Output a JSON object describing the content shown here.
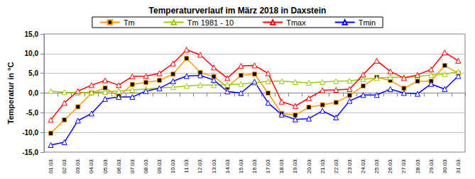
{
  "chart_data": {
    "type": "line",
    "title": "Temperaturverlauf im März 2018 in Daxstein",
    "y_label": "Temperatur in °C",
    "categories": [
      "01.03.",
      "02.03.",
      "03.03.",
      "04.03.",
      "05.03.",
      "06.03.",
      "07.03.",
      "08.03.",
      "09.03.",
      "10.03.",
      "11.03.",
      "12.03.",
      "13.03.",
      "14.03.",
      "15.03.",
      "16.03.",
      "17.03.",
      "18.03.",
      "19.03.",
      "20.03.",
      "21.03.",
      "22.03.",
      "23.03.",
      "24.03.",
      "25.03.",
      "26.03.",
      "27.03.",
      "28.03.",
      "29.03.",
      "30.03.",
      "31.03."
    ],
    "series": [
      {
        "name": "Tm",
        "color": "#ff9900",
        "marker": "square",
        "line_style": "solid",
        "values": [
          -10.2,
          -6.8,
          -3.5,
          0,
          1.3,
          -0.8,
          2.2,
          2.7,
          3.2,
          4.8,
          8.8,
          5.2,
          4.2,
          1.5,
          4.5,
          4.8,
          0,
          -5.2,
          -5.6,
          -3.6,
          -3.0,
          -2.4,
          -0.6,
          1.8,
          4.0,
          3.2,
          1.2,
          3.0,
          3.0,
          7.0,
          5.0
        ]
      },
      {
        "name": "Tm 1981 - 10",
        "color": "#99cc00",
        "marker": "triangle",
        "line_style": "solid",
        "values": [
          0.5,
          0.2,
          0.1,
          0.2,
          0.3,
          0.5,
          0.8,
          1.0,
          1.3,
          1.5,
          1.8,
          2.0,
          2.0,
          2.1,
          2.3,
          2.6,
          3.0,
          3.0,
          2.8,
          2.6,
          2.8,
          3.0,
          3.1,
          3.5,
          3.8,
          4.0,
          4.0,
          4.2,
          4.6,
          4.8,
          5.4
        ]
      },
      {
        "name": "Tmax",
        "color": "#ff0000",
        "marker": "triangle",
        "line_style": "solid",
        "values": [
          -6.8,
          -2.5,
          0.5,
          2.0,
          3.2,
          2.0,
          4.2,
          4.3,
          5.0,
          7.5,
          11.0,
          9.7,
          6.5,
          3.8,
          6.9,
          7.0,
          5.0,
          -2.2,
          -3.3,
          -1.3,
          0.7,
          0.8,
          1.0,
          4.7,
          8.2,
          5.5,
          3.8,
          4.6,
          6.0,
          10.3,
          8.2
        ]
      },
      {
        "name": "Tmin",
        "color": "#0000ff",
        "marker": "triangle",
        "line_style": "solid",
        "values": [
          -13.2,
          -12.5,
          -7.0,
          -5.2,
          -1.5,
          -1.0,
          -1.0,
          0.5,
          1.2,
          3.0,
          4.3,
          4.5,
          3.3,
          0.4,
          0.0,
          2.9,
          -2.5,
          -5.5,
          -6.7,
          -6.5,
          -4.5,
          -6.2,
          -2.0,
          -0.5,
          -0.5,
          1.0,
          0.0,
          -0.2,
          2.3,
          1.0,
          4.3
        ]
      }
    ],
    "ylim": [
      -15,
      15
    ],
    "yticks": [
      {
        "value": -15,
        "label": "-15,0"
      },
      {
        "value": -10,
        "label": "-10,0"
      },
      {
        "value": -5,
        "label": "-5,0"
      },
      {
        "value": 0,
        "label": "0,0"
      },
      {
        "value": 5,
        "label": "5,0"
      },
      {
        "value": 10,
        "label": "10,0"
      },
      {
        "value": 15,
        "label": "15,0"
      }
    ],
    "grid": true,
    "legend": "top"
  }
}
